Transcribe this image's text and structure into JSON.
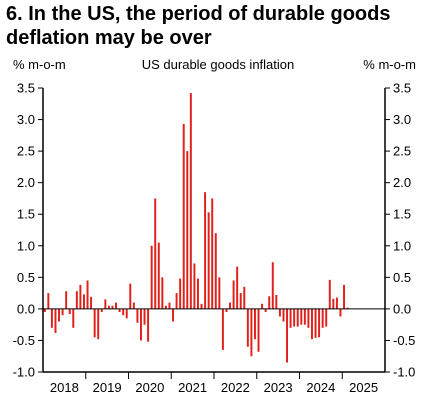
{
  "headline": "6. In the US, the period of durable goods deflation may be over",
  "chart_data": {
    "type": "bar",
    "title": "US durable goods inflation",
    "ylabel_left": "% m-o-m",
    "ylabel_right": "% m-o-m",
    "ylim": [
      -1.0,
      3.5
    ],
    "yticks": [
      "3.5",
      "3.0",
      "2.5",
      "2.0",
      "1.5",
      "1.0",
      "0.5",
      "0.0",
      "-0.5",
      "-1.0"
    ],
    "xticks": [
      "2018",
      "2019",
      "2020",
      "2021",
      "2022",
      "2023",
      "2024",
      "2025"
    ],
    "x_start": "2018-01",
    "bar_color": "#e0201b",
    "grid": false,
    "values": [
      -0.05,
      0.25,
      -0.3,
      -0.38,
      -0.2,
      -0.1,
      0.28,
      -0.08,
      -0.3,
      0.28,
      0.38,
      0.23,
      0.45,
      0.19,
      -0.45,
      -0.48,
      -0.05,
      0.15,
      0.05,
      0.05,
      0.1,
      -0.05,
      -0.1,
      -0.15,
      0.4,
      0.1,
      -0.22,
      -0.5,
      -0.25,
      -0.52,
      1.0,
      1.75,
      1.05,
      0.5,
      0.05,
      0.1,
      -0.2,
      0.25,
      0.48,
      2.93,
      2.5,
      3.42,
      0.72,
      0.48,
      0.08,
      1.85,
      1.53,
      1.75,
      1.2,
      0.5,
      -0.65,
      -0.05,
      0.1,
      0.45,
      0.67,
      0.25,
      0.35,
      -0.6,
      -0.75,
      -0.48,
      -0.68,
      0.08,
      -0.05,
      0.2,
      0.74,
      0.22,
      -0.12,
      -0.2,
      -0.85,
      -0.3,
      -0.28,
      -0.28,
      -0.25,
      -0.25,
      -0.3,
      -0.48,
      -0.46,
      -0.45,
      -0.3,
      -0.28,
      0.46,
      0.16,
      0.18,
      -0.12,
      0.38,
      0.02
    ]
  }
}
